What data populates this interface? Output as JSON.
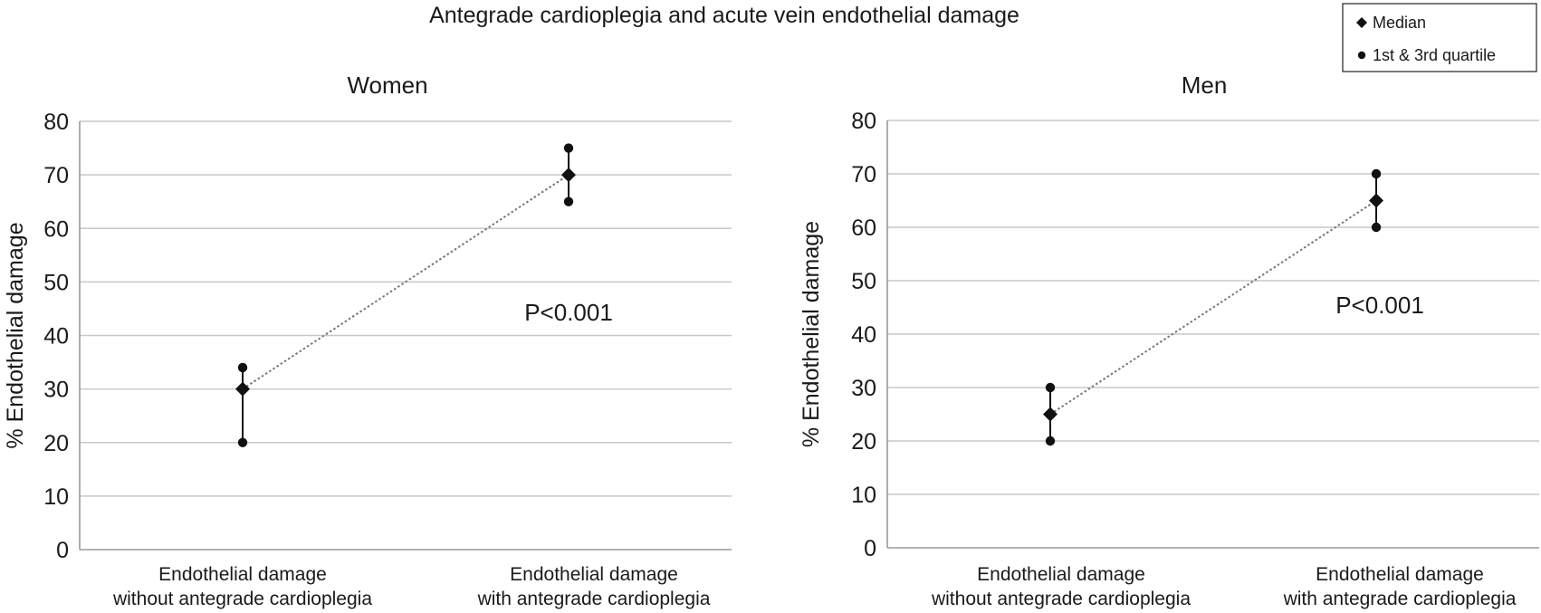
{
  "figure": {
    "title": "Antegrade cardioplegia and acute vein endothelial damage"
  },
  "legend": {
    "items": [
      {
        "label": "Median",
        "marker": "diamond"
      },
      {
        "label": "1st & 3rd quartile",
        "marker": "circle"
      }
    ]
  },
  "colors": {
    "marker": "#111111",
    "gridline": "#c8c8c8",
    "connector": "#777777"
  },
  "chart_data": [
    {
      "type": "scatter",
      "title": "Women",
      "ylabel": "% Endothelial damage",
      "xlabel": "",
      "ylim": [
        0,
        80
      ],
      "yticks": [
        0,
        10,
        20,
        30,
        40,
        50,
        60,
        70,
        80
      ],
      "grid": true,
      "categories": [
        [
          "Endothelial damage",
          "without antegrade cardioplegia"
        ],
        [
          "Endothelial damage",
          "with antegrade cardioplegia"
        ]
      ],
      "series": [
        {
          "name": "Median",
          "values": [
            30,
            70
          ]
        },
        {
          "name": "1st quartile",
          "values": [
            20,
            65
          ]
        },
        {
          "name": "3rd quartile",
          "values": [
            34,
            75
          ]
        }
      ],
      "annotation": "P<0.001"
    },
    {
      "type": "scatter",
      "title": "Men",
      "ylabel": "% Endothelial damage",
      "xlabel": "",
      "ylim": [
        0,
        80
      ],
      "yticks": [
        0,
        10,
        20,
        30,
        40,
        50,
        60,
        70,
        80
      ],
      "grid": true,
      "categories": [
        [
          "Endothelial damage",
          "without antegrade cardioplegia"
        ],
        [
          "Endothelial damage",
          "with antegrade cardioplegia"
        ]
      ],
      "series": [
        {
          "name": "Median",
          "values": [
            25,
            65
          ]
        },
        {
          "name": "1st quartile",
          "values": [
            20,
            60
          ]
        },
        {
          "name": "3rd quartile",
          "values": [
            30,
            70
          ]
        }
      ],
      "annotation": "P<0.001"
    }
  ]
}
